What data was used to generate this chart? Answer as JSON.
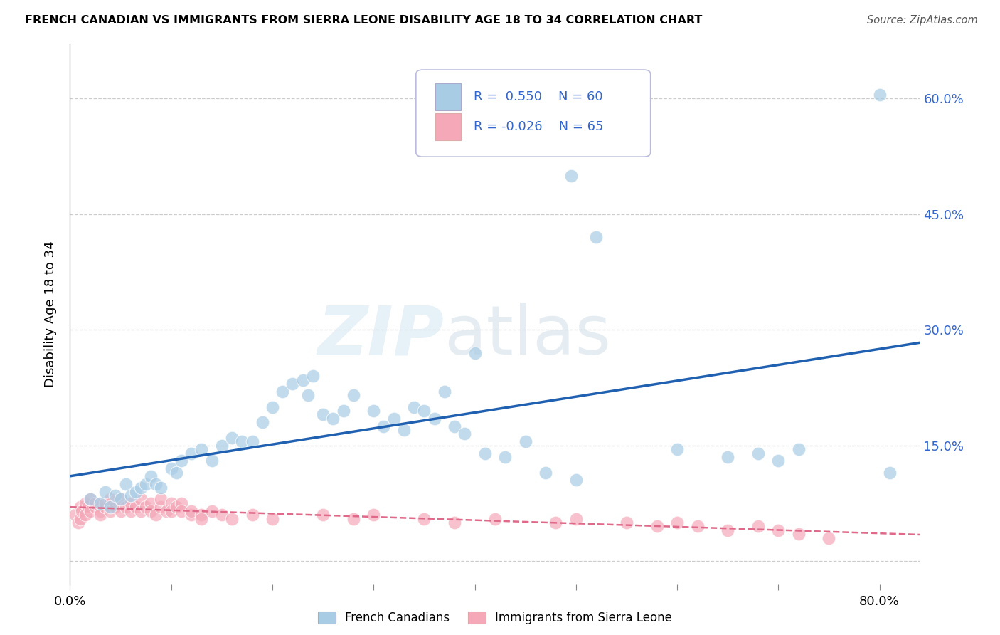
{
  "title": "FRENCH CANADIAN VS IMMIGRANTS FROM SIERRA LEONE DISABILITY AGE 18 TO 34 CORRELATION CHART",
  "source": "Source: ZipAtlas.com",
  "ylabel": "Disability Age 18 to 34",
  "blue_color": "#a8cce4",
  "pink_color": "#f4a8b8",
  "line_blue": "#2060b0",
  "line_pink": "#e06888",
  "label_color": "#3366cc",
  "grid_color": "#cccccc",
  "xlim": [
    0.0,
    0.84
  ],
  "ylim": [
    -0.03,
    0.67
  ],
  "x_ticks": [
    0.0,
    0.1,
    0.2,
    0.3,
    0.4,
    0.5,
    0.6,
    0.7,
    0.8
  ],
  "x_tick_labels": [
    "0.0%",
    "",
    "",
    "",
    "",
    "",
    "",
    "",
    "80.0%"
  ],
  "y_ticks": [
    0.0,
    0.15,
    0.3,
    0.45,
    0.6
  ],
  "y_right_labels": [
    "",
    "15.0%",
    "30.0%",
    "45.0%",
    "60.0%"
  ],
  "r_blue": "0.550",
  "n_blue": "60",
  "r_pink": "-0.026",
  "n_pink": "65",
  "legend_label1": "French Canadians",
  "legend_label2": "Immigrants from Sierra Leone",
  "blue_x": [
    0.02,
    0.03,
    0.035,
    0.04,
    0.045,
    0.05,
    0.055,
    0.06,
    0.065,
    0.07,
    0.075,
    0.08,
    0.085,
    0.09,
    0.1,
    0.105,
    0.11,
    0.12,
    0.13,
    0.14,
    0.15,
    0.16,
    0.17,
    0.18,
    0.19,
    0.2,
    0.21,
    0.22,
    0.23,
    0.235,
    0.24,
    0.25,
    0.26,
    0.27,
    0.28,
    0.3,
    0.31,
    0.32,
    0.33,
    0.34,
    0.35,
    0.36,
    0.37,
    0.38,
    0.39,
    0.4,
    0.41,
    0.43,
    0.45,
    0.47,
    0.495,
    0.5,
    0.52,
    0.6,
    0.65,
    0.68,
    0.7,
    0.72,
    0.8,
    0.81
  ],
  "blue_y": [
    0.08,
    0.075,
    0.09,
    0.07,
    0.085,
    0.08,
    0.1,
    0.085,
    0.09,
    0.095,
    0.1,
    0.11,
    0.1,
    0.095,
    0.12,
    0.115,
    0.13,
    0.14,
    0.145,
    0.13,
    0.15,
    0.16,
    0.155,
    0.155,
    0.18,
    0.2,
    0.22,
    0.23,
    0.235,
    0.215,
    0.24,
    0.19,
    0.185,
    0.195,
    0.215,
    0.195,
    0.175,
    0.185,
    0.17,
    0.2,
    0.195,
    0.185,
    0.22,
    0.175,
    0.165,
    0.27,
    0.14,
    0.135,
    0.155,
    0.115,
    0.5,
    0.105,
    0.42,
    0.145,
    0.135,
    0.14,
    0.13,
    0.145,
    0.605,
    0.115
  ],
  "pink_x": [
    0.005,
    0.008,
    0.01,
    0.01,
    0.012,
    0.015,
    0.015,
    0.018,
    0.02,
    0.02,
    0.025,
    0.025,
    0.03,
    0.03,
    0.035,
    0.035,
    0.04,
    0.04,
    0.045,
    0.05,
    0.05,
    0.055,
    0.06,
    0.06,
    0.065,
    0.07,
    0.07,
    0.075,
    0.08,
    0.08,
    0.085,
    0.09,
    0.09,
    0.095,
    0.1,
    0.1,
    0.105,
    0.11,
    0.11,
    0.12,
    0.12,
    0.13,
    0.13,
    0.14,
    0.15,
    0.16,
    0.18,
    0.2,
    0.25,
    0.28,
    0.3,
    0.35,
    0.38,
    0.42,
    0.48,
    0.5,
    0.55,
    0.58,
    0.6,
    0.62,
    0.65,
    0.68,
    0.7,
    0.72,
    0.75
  ],
  "pink_y": [
    0.06,
    0.05,
    0.07,
    0.055,
    0.065,
    0.06,
    0.075,
    0.07,
    0.065,
    0.08,
    0.07,
    0.075,
    0.065,
    0.06,
    0.07,
    0.075,
    0.065,
    0.08,
    0.07,
    0.065,
    0.08,
    0.07,
    0.065,
    0.075,
    0.07,
    0.065,
    0.08,
    0.07,
    0.075,
    0.065,
    0.06,
    0.07,
    0.08,
    0.065,
    0.075,
    0.065,
    0.07,
    0.075,
    0.065,
    0.06,
    0.065,
    0.06,
    0.055,
    0.065,
    0.06,
    0.055,
    0.06,
    0.055,
    0.06,
    0.055,
    0.06,
    0.055,
    0.05,
    0.055,
    0.05,
    0.055,
    0.05,
    0.045,
    0.05,
    0.045,
    0.04,
    0.045,
    0.04,
    0.035,
    0.03
  ]
}
